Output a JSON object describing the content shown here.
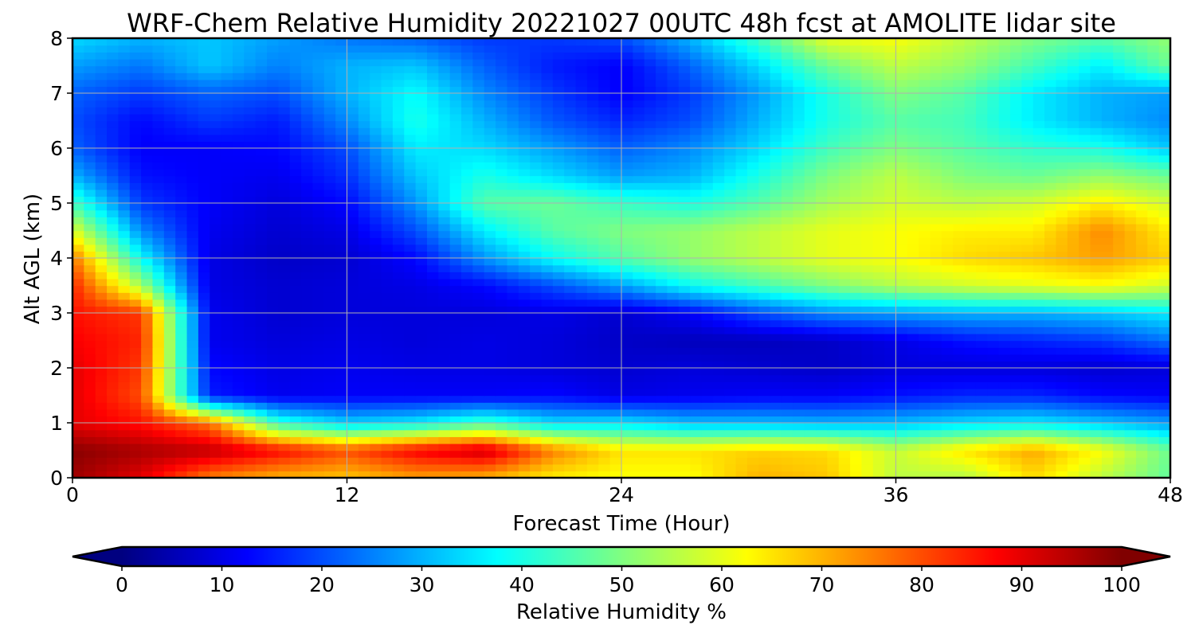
{
  "chart_data": {
    "type": "heatmap",
    "title": "WRF-Chem Relative Humidity 20221027 00UTC 48h fcst at AMOLITE lidar site",
    "xlabel": "Forecast Time (Hour)",
    "ylabel": "Alt AGL (km)",
    "xlim": [
      0,
      48
    ],
    "ylim": [
      0,
      8
    ],
    "x_ticks": [
      0,
      12,
      24,
      36,
      48
    ],
    "y_ticks": [
      0,
      1,
      2,
      3,
      4,
      5,
      6,
      7,
      8
    ],
    "grid": true,
    "colormap": "jet",
    "colorbar": {
      "label": "Relative Humidity %",
      "range": [
        0,
        100
      ],
      "ticks": [
        0,
        10,
        20,
        30,
        40,
        50,
        60,
        70,
        80,
        90,
        100
      ],
      "extend": "both",
      "orientation": "horizontal"
    },
    "x_hours": [
      0,
      3,
      6,
      9,
      12,
      15,
      18,
      21,
      24,
      27,
      30,
      33,
      36,
      39,
      42,
      45,
      48
    ],
    "y_km": [
      0,
      0.5,
      1,
      1.5,
      2,
      2.5,
      3,
      3.5,
      4,
      4.5,
      5,
      5.5,
      6,
      6.5,
      7,
      7.5,
      8
    ],
    "values": [
      [
        97,
        90,
        75,
        70,
        68,
        72,
        70,
        64,
        62,
        62,
        70,
        68,
        56,
        55,
        66,
        56,
        47
      ],
      [
        99,
        96,
        94,
        87,
        80,
        88,
        93,
        75,
        65,
        65,
        67,
        66,
        57,
        65,
        71,
        62,
        48
      ],
      [
        90,
        86,
        76,
        42,
        33,
        36,
        44,
        34,
        35,
        31,
        31,
        30,
        31,
        34,
        36,
        32,
        28
      ],
      [
        90,
        80,
        15,
        11,
        12,
        12,
        12,
        13,
        10,
        11,
        12,
        12,
        14,
        16,
        16,
        13,
        12
      ],
      [
        90,
        82,
        13,
        10,
        11,
        10,
        10,
        9,
        8,
        9,
        8,
        7,
        9,
        9,
        9,
        8,
        9
      ],
      [
        88,
        84,
        11,
        9,
        10,
        9,
        10,
        9,
        7,
        6,
        6,
        7,
        10,
        14,
        16,
        18,
        24
      ],
      [
        86,
        82,
        11,
        8,
        9,
        9,
        9,
        10,
        8,
        12,
        20,
        26,
        28,
        30,
        30,
        32,
        36
      ],
      [
        84,
        54,
        10,
        8,
        9,
        10,
        13,
        20,
        28,
        38,
        44,
        50,
        55,
        58,
        60,
        62,
        58
      ],
      [
        76,
        38,
        10,
        7,
        8,
        13,
        27,
        38,
        46,
        52,
        56,
        60,
        62,
        66,
        68,
        72,
        67
      ],
      [
        60,
        26,
        11,
        8,
        10,
        20,
        36,
        46,
        50,
        52,
        56,
        60,
        62,
        64,
        64,
        74,
        64
      ],
      [
        44,
        18,
        12,
        9,
        13,
        27,
        46,
        48,
        43,
        40,
        46,
        54,
        58,
        56,
        58,
        64,
        58
      ],
      [
        30,
        14,
        12,
        11,
        17,
        32,
        40,
        34,
        28,
        30,
        40,
        50,
        56,
        50,
        48,
        52,
        48
      ],
      [
        22,
        12,
        12,
        13,
        20,
        36,
        34,
        28,
        22,
        26,
        34,
        44,
        50,
        46,
        42,
        40,
        32
      ],
      [
        20,
        13,
        18,
        15,
        26,
        40,
        30,
        21,
        16,
        20,
        30,
        40,
        46,
        44,
        36,
        30,
        26
      ],
      [
        22,
        18,
        22,
        20,
        30,
        38,
        26,
        18,
        12,
        18,
        28,
        40,
        50,
        46,
        36,
        30,
        28
      ],
      [
        28,
        24,
        32,
        25,
        30,
        32,
        22,
        15,
        12,
        22,
        34,
        48,
        56,
        52,
        44,
        36,
        48
      ],
      [
        34,
        30,
        32,
        28,
        24,
        22,
        18,
        18,
        20,
        30,
        44,
        60,
        62,
        56,
        50,
        46,
        52
      ]
    ]
  }
}
